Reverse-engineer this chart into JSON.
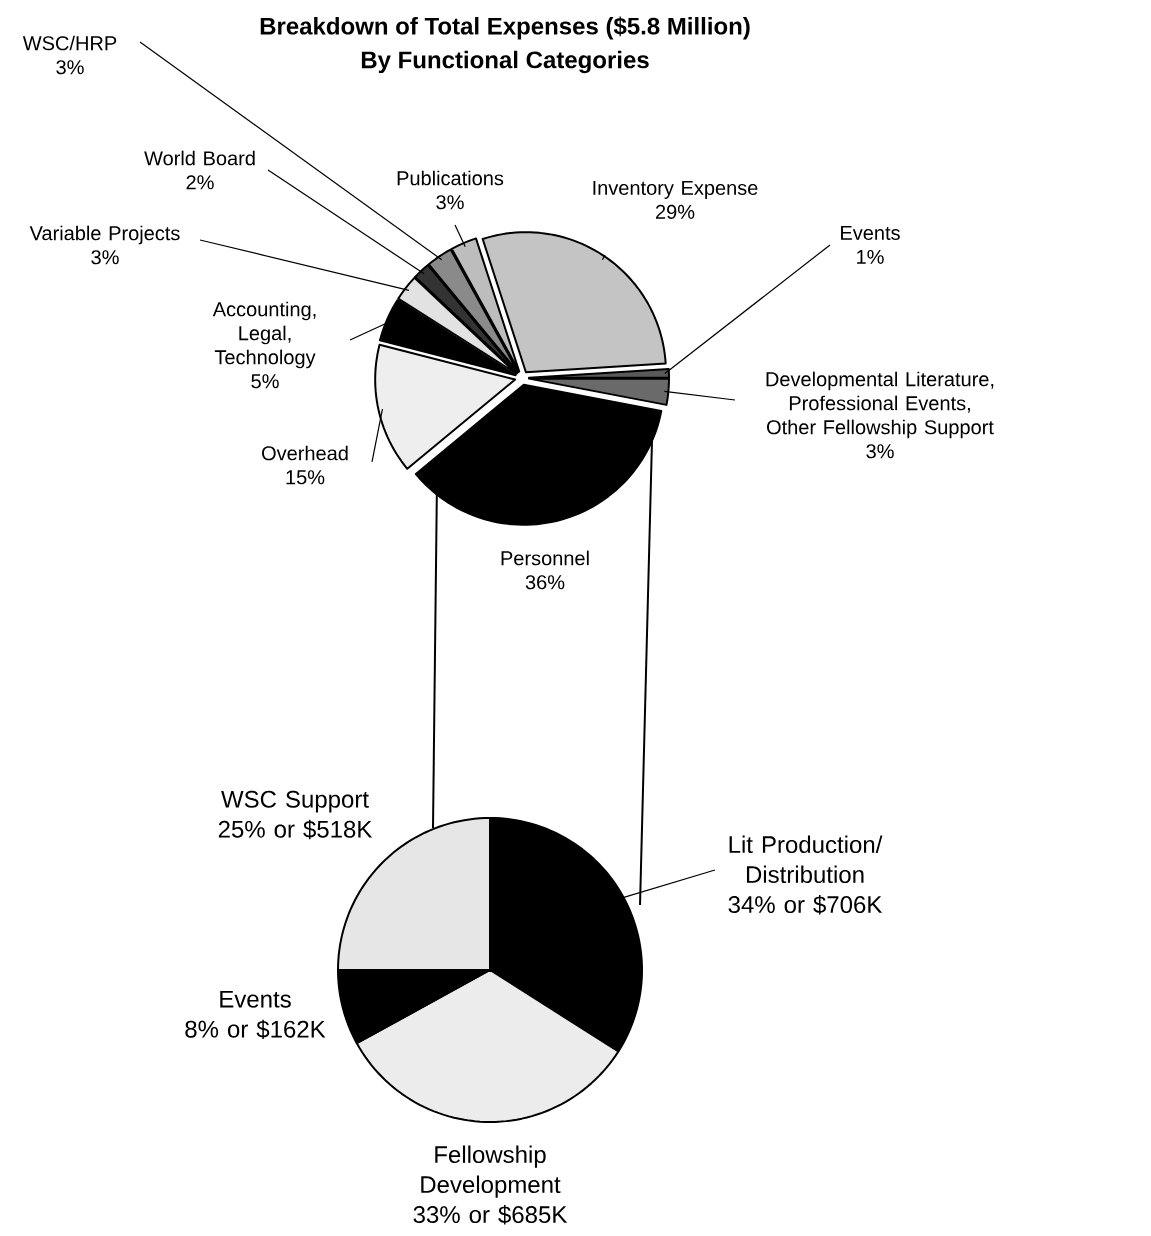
{
  "chart_data": [
    {
      "type": "pie",
      "title": "Breakdown of Total Expenses ($5.8 Million)",
      "subtitle": "By Functional Categories",
      "categories": [
        "Inventory Expense",
        "Events",
        "Developmental Literature, Professional Events, Other Fellowship Support",
        "Personnel",
        "Overhead",
        "Accounting, Legal, Technology",
        "Variable Projects",
        "World Board",
        "WSC/HRP",
        "Publications"
      ],
      "values": [
        29,
        1,
        3,
        36,
        15,
        5,
        3,
        2,
        3,
        3
      ],
      "value_labels": [
        "29%",
        "1%",
        "3%",
        "36%",
        "15%",
        "5%",
        "3%",
        "2%",
        "3%",
        "3%"
      ],
      "colors": [
        "#c4c4c4",
        "#5a5a5a",
        "#6a6a6a",
        "#000000",
        "#eeeeee",
        "#000000",
        "#e2e2e2",
        "#333333",
        "#8a8a8a",
        "#bdbdbd"
      ]
    },
    {
      "type": "pie",
      "categories": [
        "Lit Production/ Distribution",
        "Fellowship Development",
        "Events",
        "WSC Support"
      ],
      "values": [
        34,
        33,
        8,
        25
      ],
      "value_labels": [
        "34% or $706K",
        "33% or $685K",
        "8% or $162K",
        "25% or $518K"
      ],
      "colors": [
        "#000000",
        "#ececec",
        "#000000",
        "#e6e6e6"
      ]
    }
  ]
}
